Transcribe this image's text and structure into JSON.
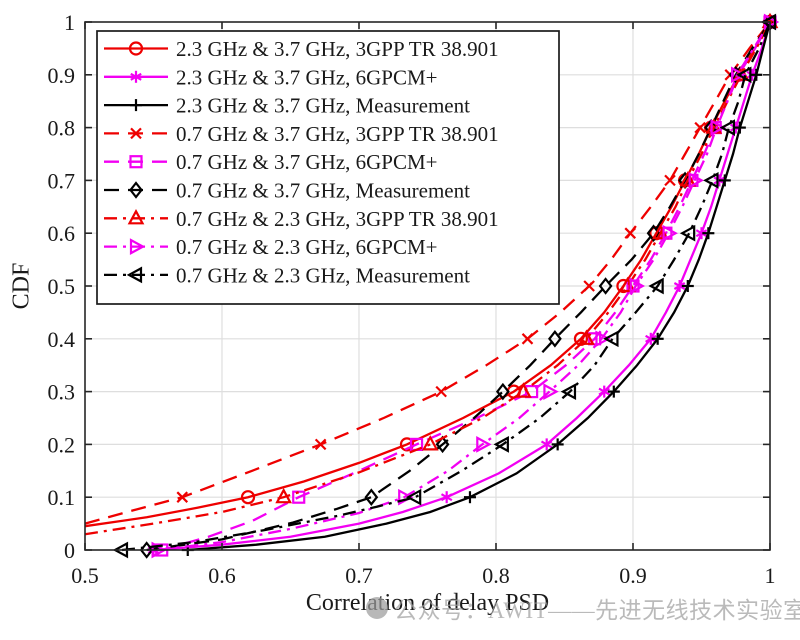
{
  "watermark": {
    "icon": "avatar-circle-icon",
    "text": "公众号：AWIT——先进无线技术实验室",
    "color": "#a0a0a0"
  },
  "chart_data": {
    "type": "line",
    "title": "",
    "xlabel": "Correlation of delay PSD",
    "ylabel": "CDF",
    "xlim": [
      0.5,
      1.0
    ],
    "ylim": [
      0,
      1
    ],
    "xticks": [
      0.5,
      0.6,
      0.7,
      0.8,
      0.9,
      1
    ],
    "xtick_labels": [
      "0.5",
      "0.6",
      "0.7",
      "0.8",
      "0.9",
      "1"
    ],
    "yticks": [
      0,
      0.1,
      0.2,
      0.3,
      0.4,
      0.5,
      0.6,
      0.7,
      0.8,
      0.9,
      1
    ],
    "ytick_labels": [
      "0",
      "0.1",
      "0.2",
      "0.3",
      "0.4",
      "0.5",
      "0.6",
      "0.7",
      "0.8",
      "0.9",
      "1"
    ],
    "grid": true,
    "legend_position": "upper-left",
    "colors": {
      "red": "#ee0000",
      "magenta": "#f200f2",
      "black": "#000000",
      "grid": "#dedede",
      "axis": "#262626",
      "legend_bg": "#ffffff"
    },
    "series": [
      {
        "name": "2.3 GHz & 3.7 GHz, 3GPP TR 38.901",
        "color": "red",
        "line": "solid",
        "marker": "circle",
        "points": [
          [
            0.5,
            0.045
          ],
          [
            0.545,
            0.062
          ],
          [
            0.582,
            0.08
          ],
          [
            0.619,
            0.1
          ],
          [
            0.66,
            0.13
          ],
          [
            0.7,
            0.165
          ],
          [
            0.735,
            0.2
          ],
          [
            0.776,
            0.25
          ],
          [
            0.813,
            0.3
          ],
          [
            0.84,
            0.35
          ],
          [
            0.862,
            0.4
          ],
          [
            0.879,
            0.45
          ],
          [
            0.893,
            0.5
          ],
          [
            0.906,
            0.55
          ],
          [
            0.917,
            0.6
          ],
          [
            0.928,
            0.65
          ],
          [
            0.938,
            0.7
          ],
          [
            0.948,
            0.75
          ],
          [
            0.957,
            0.8
          ],
          [
            0.967,
            0.85
          ],
          [
            0.977,
            0.9
          ],
          [
            0.989,
            0.95
          ],
          [
            1,
            1
          ]
        ]
      },
      {
        "name": "2.3 GHz & 3.7 GHz, 6GPCM+",
        "color": "magenta",
        "line": "solid",
        "marker": "asterisk",
        "points": [
          [
            0.55,
            0
          ],
          [
            0.6,
            0.01
          ],
          [
            0.65,
            0.025
          ],
          [
            0.7,
            0.05
          ],
          [
            0.732,
            0.072
          ],
          [
            0.764,
            0.1
          ],
          [
            0.802,
            0.145
          ],
          [
            0.837,
            0.2
          ],
          [
            0.859,
            0.25
          ],
          [
            0.879,
            0.3
          ],
          [
            0.897,
            0.35
          ],
          [
            0.913,
            0.4
          ],
          [
            0.924,
            0.45
          ],
          [
            0.934,
            0.5
          ],
          [
            0.942,
            0.55
          ],
          [
            0.95,
            0.6
          ],
          [
            0.957,
            0.65
          ],
          [
            0.963,
            0.7
          ],
          [
            0.969,
            0.75
          ],
          [
            0.975,
            0.8
          ],
          [
            0.981,
            0.85
          ],
          [
            0.987,
            0.9
          ],
          [
            0.994,
            0.95
          ],
          [
            1,
            1
          ]
        ]
      },
      {
        "name": "2.3 GHz & 3.7 GHz, Measurement",
        "color": "black",
        "line": "solid",
        "marker": "plus",
        "points": [
          [
            0.575,
            0
          ],
          [
            0.625,
            0.01
          ],
          [
            0.675,
            0.025
          ],
          [
            0.72,
            0.05
          ],
          [
            0.752,
            0.072
          ],
          [
            0.781,
            0.1
          ],
          [
            0.815,
            0.145
          ],
          [
            0.845,
            0.2
          ],
          [
            0.867,
            0.25
          ],
          [
            0.886,
            0.3
          ],
          [
            0.903,
            0.35
          ],
          [
            0.918,
            0.4
          ],
          [
            0.93,
            0.45
          ],
          [
            0.94,
            0.5
          ],
          [
            0.948,
            0.55
          ],
          [
            0.955,
            0.6
          ],
          [
            0.961,
            0.65
          ],
          [
            0.967,
            0.7
          ],
          [
            0.973,
            0.75
          ],
          [
            0.978,
            0.8
          ],
          [
            0.984,
            0.85
          ],
          [
            0.99,
            0.9
          ],
          [
            0.995,
            0.95
          ],
          [
            1,
            1
          ]
        ]
      },
      {
        "name": "0.7 GHz & 3.7 GHz, 3GPP TR 38.901",
        "color": "red",
        "line": "dashed",
        "marker": "x",
        "points": [
          [
            0.5,
            0.05
          ],
          [
            0.535,
            0.075
          ],
          [
            0.571,
            0.1
          ],
          [
            0.622,
            0.15
          ],
          [
            0.672,
            0.2
          ],
          [
            0.718,
            0.25
          ],
          [
            0.76,
            0.3
          ],
          [
            0.793,
            0.35
          ],
          [
            0.823,
            0.4
          ],
          [
            0.847,
            0.45
          ],
          [
            0.868,
            0.5
          ],
          [
            0.884,
            0.55
          ],
          [
            0.898,
            0.6
          ],
          [
            0.913,
            0.65
          ],
          [
            0.927,
            0.7
          ],
          [
            0.938,
            0.75
          ],
          [
            0.949,
            0.8
          ],
          [
            0.96,
            0.85
          ],
          [
            0.971,
            0.9
          ],
          [
            0.985,
            0.95
          ],
          [
            1,
            1
          ]
        ]
      },
      {
        "name": "0.7 GHz & 3.7 GHz, 6GPCM+",
        "color": "magenta",
        "line": "dashed",
        "marker": "square",
        "points": [
          [
            0.556,
            0
          ],
          [
            0.59,
            0.025
          ],
          [
            0.622,
            0.055
          ],
          [
            0.656,
            0.1
          ],
          [
            0.7,
            0.15
          ],
          [
            0.742,
            0.2
          ],
          [
            0.786,
            0.25
          ],
          [
            0.826,
            0.3
          ],
          [
            0.851,
            0.35
          ],
          [
            0.872,
            0.4
          ],
          [
            0.887,
            0.45
          ],
          [
            0.9,
            0.5
          ],
          [
            0.913,
            0.55
          ],
          [
            0.924,
            0.6
          ],
          [
            0.934,
            0.65
          ],
          [
            0.943,
            0.7
          ],
          [
            0.952,
            0.75
          ],
          [
            0.96,
            0.8
          ],
          [
            0.969,
            0.85
          ],
          [
            0.977,
            0.9
          ],
          [
            0.989,
            0.95
          ],
          [
            1,
            1
          ]
        ]
      },
      {
        "name": "0.7 GHz & 3.7 GHz, Measurement",
        "color": "black",
        "line": "dashed",
        "marker": "diamond",
        "points": [
          [
            0.545,
            0
          ],
          [
            0.6,
            0.02
          ],
          [
            0.652,
            0.052
          ],
          [
            0.684,
            0.078
          ],
          [
            0.709,
            0.1
          ],
          [
            0.737,
            0.15
          ],
          [
            0.761,
            0.2
          ],
          [
            0.784,
            0.25
          ],
          [
            0.805,
            0.3
          ],
          [
            0.825,
            0.35
          ],
          [
            0.843,
            0.4
          ],
          [
            0.862,
            0.45
          ],
          [
            0.88,
            0.5
          ],
          [
            0.899,
            0.55
          ],
          [
            0.915,
            0.6
          ],
          [
            0.927,
            0.65
          ],
          [
            0.938,
            0.7
          ],
          [
            0.948,
            0.75
          ],
          [
            0.957,
            0.8
          ],
          [
            0.966,
            0.85
          ],
          [
            0.975,
            0.9
          ],
          [
            0.987,
            0.95
          ],
          [
            1,
            1
          ]
        ]
      },
      {
        "name": "0.7 GHz & 2.3 GHz, 3GPP TR 38.901",
        "color": "red",
        "line": "dashdot",
        "marker": "triangle-up",
        "points": [
          [
            0.5,
            0.03
          ],
          [
            0.55,
            0.05
          ],
          [
            0.6,
            0.072
          ],
          [
            0.645,
            0.1
          ],
          [
            0.7,
            0.147
          ],
          [
            0.752,
            0.2
          ],
          [
            0.79,
            0.25
          ],
          [
            0.82,
            0.3
          ],
          [
            0.845,
            0.35
          ],
          [
            0.866,
            0.4
          ],
          [
            0.882,
            0.45
          ],
          [
            0.896,
            0.5
          ],
          [
            0.909,
            0.55
          ],
          [
            0.92,
            0.6
          ],
          [
            0.931,
            0.65
          ],
          [
            0.94,
            0.7
          ],
          [
            0.95,
            0.75
          ],
          [
            0.959,
            0.8
          ],
          [
            0.969,
            0.85
          ],
          [
            0.979,
            0.9
          ],
          [
            0.99,
            0.95
          ],
          [
            1,
            1
          ]
        ]
      },
      {
        "name": "0.7 GHz & 2.3 GHz, 6GPCM+",
        "color": "magenta",
        "line": "dashdot",
        "marker": "triangle-right",
        "points": [
          [
            0.553,
            0
          ],
          [
            0.6,
            0.015
          ],
          [
            0.65,
            0.04
          ],
          [
            0.7,
            0.07
          ],
          [
            0.733,
            0.1
          ],
          [
            0.765,
            0.15
          ],
          [
            0.79,
            0.2
          ],
          [
            0.817,
            0.25
          ],
          [
            0.839,
            0.3
          ],
          [
            0.86,
            0.35
          ],
          [
            0.877,
            0.4
          ],
          [
            0.891,
            0.45
          ],
          [
            0.902,
            0.5
          ],
          [
            0.915,
            0.55
          ],
          [
            0.926,
            0.6
          ],
          [
            0.936,
            0.65
          ],
          [
            0.945,
            0.7
          ],
          [
            0.954,
            0.75
          ],
          [
            0.961,
            0.8
          ],
          [
            0.969,
            0.85
          ],
          [
            0.976,
            0.9
          ],
          [
            0.988,
            0.95
          ],
          [
            1,
            1
          ]
        ]
      },
      {
        "name": "0.7 GHz & 2.3 GHz, Measurement",
        "color": "black",
        "line": "dashdot",
        "marker": "triangle-left",
        "points": [
          [
            0.527,
            0
          ],
          [
            0.58,
            0.015
          ],
          [
            0.632,
            0.038
          ],
          [
            0.685,
            0.065
          ],
          [
            0.713,
            0.082
          ],
          [
            0.741,
            0.1
          ],
          [
            0.775,
            0.15
          ],
          [
            0.805,
            0.2
          ],
          [
            0.832,
            0.25
          ],
          [
            0.854,
            0.3
          ],
          [
            0.872,
            0.35
          ],
          [
            0.885,
            0.4
          ],
          [
            0.902,
            0.45
          ],
          [
            0.918,
            0.5
          ],
          [
            0.93,
            0.55
          ],
          [
            0.941,
            0.6
          ],
          [
            0.95,
            0.65
          ],
          [
            0.958,
            0.7
          ],
          [
            0.965,
            0.75
          ],
          [
            0.97,
            0.8
          ],
          [
            0.977,
            0.85
          ],
          [
            0.982,
            0.9
          ],
          [
            0.992,
            0.95
          ],
          [
            1,
            1
          ]
        ]
      }
    ]
  }
}
